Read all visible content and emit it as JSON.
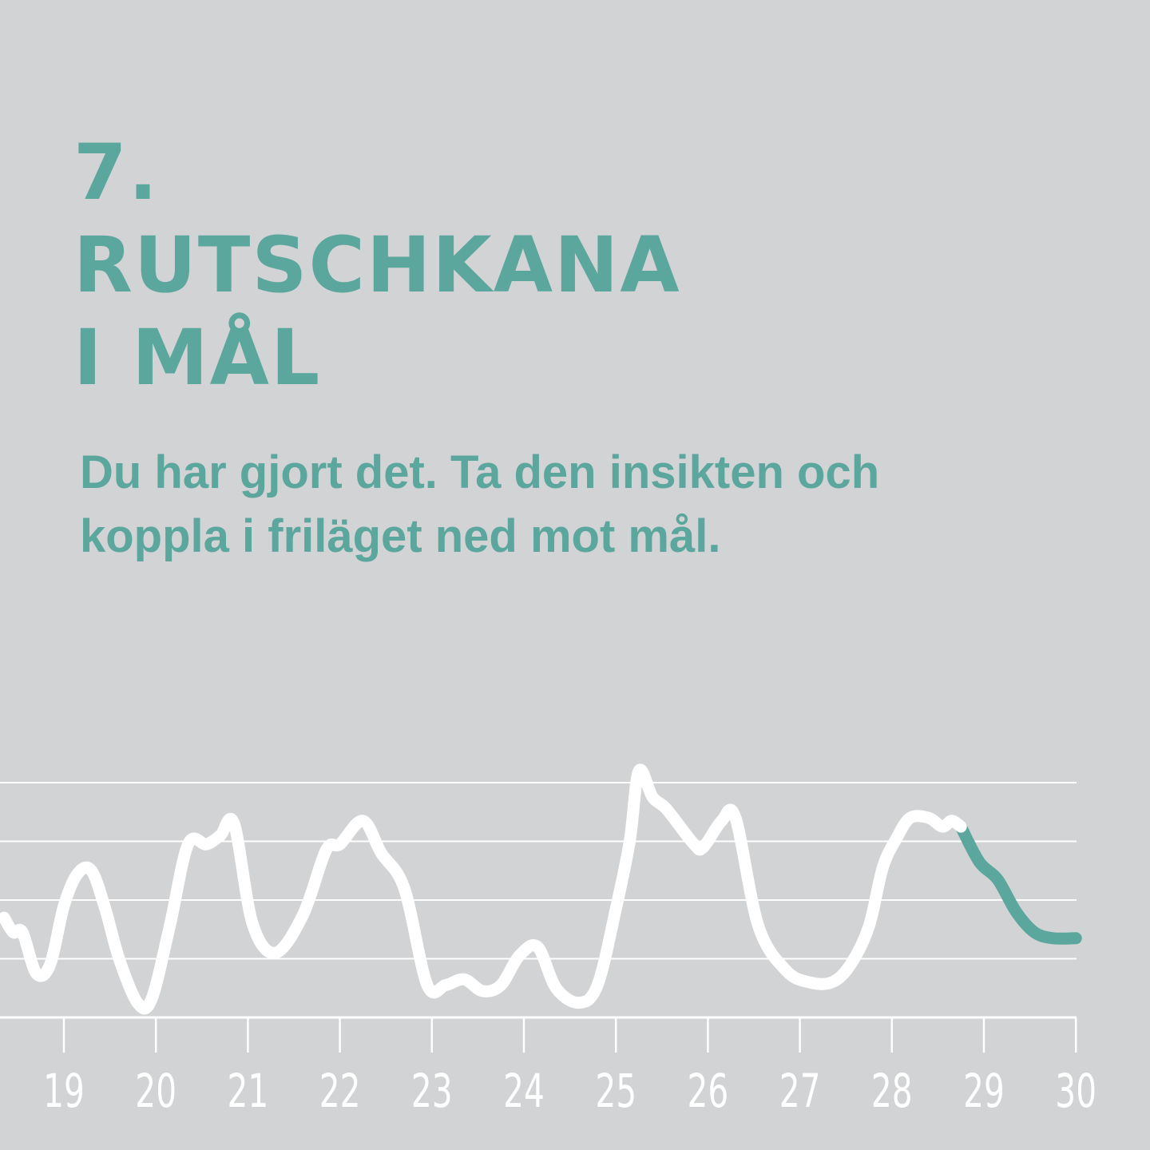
{
  "headline": {
    "number": "7.",
    "line1": "RUTSCHKANA",
    "line2": "I MÅL"
  },
  "body": {
    "line1": "Du har gjort det. Ta den insikten och",
    "line2": "koppla i friläget ned mot mål."
  },
  "colors": {
    "background": "#d1d3d4",
    "accent": "#5ba69d",
    "line": "#ffffff",
    "grid": "#ffffff"
  },
  "chart_data": {
    "type": "line",
    "categories": [
      "19",
      "20",
      "21",
      "22",
      "23",
      "24",
      "25",
      "26",
      "27",
      "28",
      "29",
      "30"
    ],
    "ylim": [
      0,
      4
    ],
    "grid": true,
    "series": [
      {
        "color": "#ffffff",
        "x": [
          18.35,
          18.45,
          18.55,
          18.7,
          18.85,
          19.0,
          19.15,
          19.3,
          19.45,
          19.6,
          19.8,
          19.95,
          20.15,
          20.35,
          20.55,
          20.7,
          20.85,
          21.05,
          21.3,
          21.6,
          21.85,
          22.0,
          22.25,
          22.45,
          22.7,
          22.95,
          23.15,
          23.35,
          23.55,
          23.75,
          23.95,
          24.15,
          24.35,
          24.6,
          24.8,
          25.0,
          25.15,
          25.25,
          25.4,
          25.55,
          25.85,
          25.95,
          26.15,
          26.3,
          26.55,
          26.85,
          27.1,
          27.35,
          27.55,
          27.75,
          27.9,
          28.05,
          28.2,
          28.4,
          28.55,
          28.65,
          28.75
        ],
        "y": [
          1.7,
          1.45,
          1.45,
          0.75,
          0.9,
          1.9,
          2.45,
          2.5,
          1.85,
          1.0,
          0.25,
          0.3,
          1.55,
          2.95,
          2.95,
          3.1,
          3.3,
          1.6,
          1.1,
          1.75,
          2.85,
          2.95,
          3.35,
          2.8,
          2.2,
          0.55,
          0.55,
          0.65,
          0.45,
          0.55,
          1.05,
          1.2,
          0.5,
          0.25,
          0.55,
          1.85,
          3.0,
          4.2,
          3.75,
          3.55,
          2.95,
          2.9,
          3.35,
          3.4,
          1.55,
          0.8,
          0.6,
          0.6,
          0.9,
          1.55,
          2.55,
          3.05,
          3.4,
          3.4,
          3.25,
          3.35,
          3.25
        ]
      },
      {
        "color": "#5ba69d",
        "x": [
          28.75,
          28.95,
          29.15,
          29.35,
          29.55,
          29.75,
          30.0
        ],
        "y": [
          3.25,
          2.65,
          2.35,
          1.8,
          1.45,
          1.35,
          1.35
        ]
      }
    ]
  }
}
